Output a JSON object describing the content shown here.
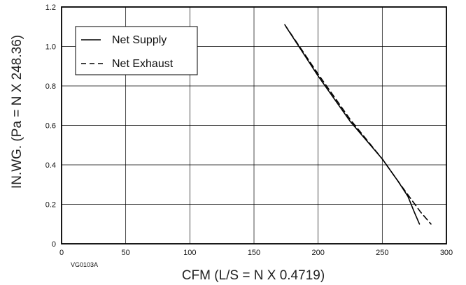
{
  "chart_data": {
    "type": "line",
    "xlabel": "CFM (L/S = N X 0.4719)",
    "ylabel": "IN.WG. (Pa = N X 248.36)",
    "xlim": [
      0,
      300
    ],
    "ylim": [
      0,
      1.2
    ],
    "x_ticks": [
      "0",
      "50",
      "100",
      "150",
      "200",
      "250",
      "300"
    ],
    "y_ticks": [
      "0",
      "0.2",
      "0.4",
      "0.6",
      "0.8",
      "1.0",
      "1.2"
    ],
    "grid": true,
    "legend_position": "top-left",
    "figure_code": "VG0103A",
    "series": [
      {
        "name": "Net Supply",
        "style": "solid",
        "color": "#000000",
        "points": [
          [
            175,
            1.1
          ],
          [
            200,
            0.85
          ],
          [
            225,
            0.62
          ],
          [
            250,
            0.43
          ],
          [
            262,
            0.32
          ],
          [
            270,
            0.24
          ],
          [
            275,
            0.16
          ],
          [
            279,
            0.1
          ]
        ]
      },
      {
        "name": "Net Exhaust",
        "style": "dashed",
        "color": "#000000",
        "points": [
          [
            174,
            1.11
          ],
          [
            200,
            0.86
          ],
          [
            225,
            0.63
          ],
          [
            250,
            0.43
          ],
          [
            262,
            0.32
          ],
          [
            272,
            0.23
          ],
          [
            280,
            0.16
          ],
          [
            288,
            0.1
          ]
        ]
      }
    ]
  }
}
